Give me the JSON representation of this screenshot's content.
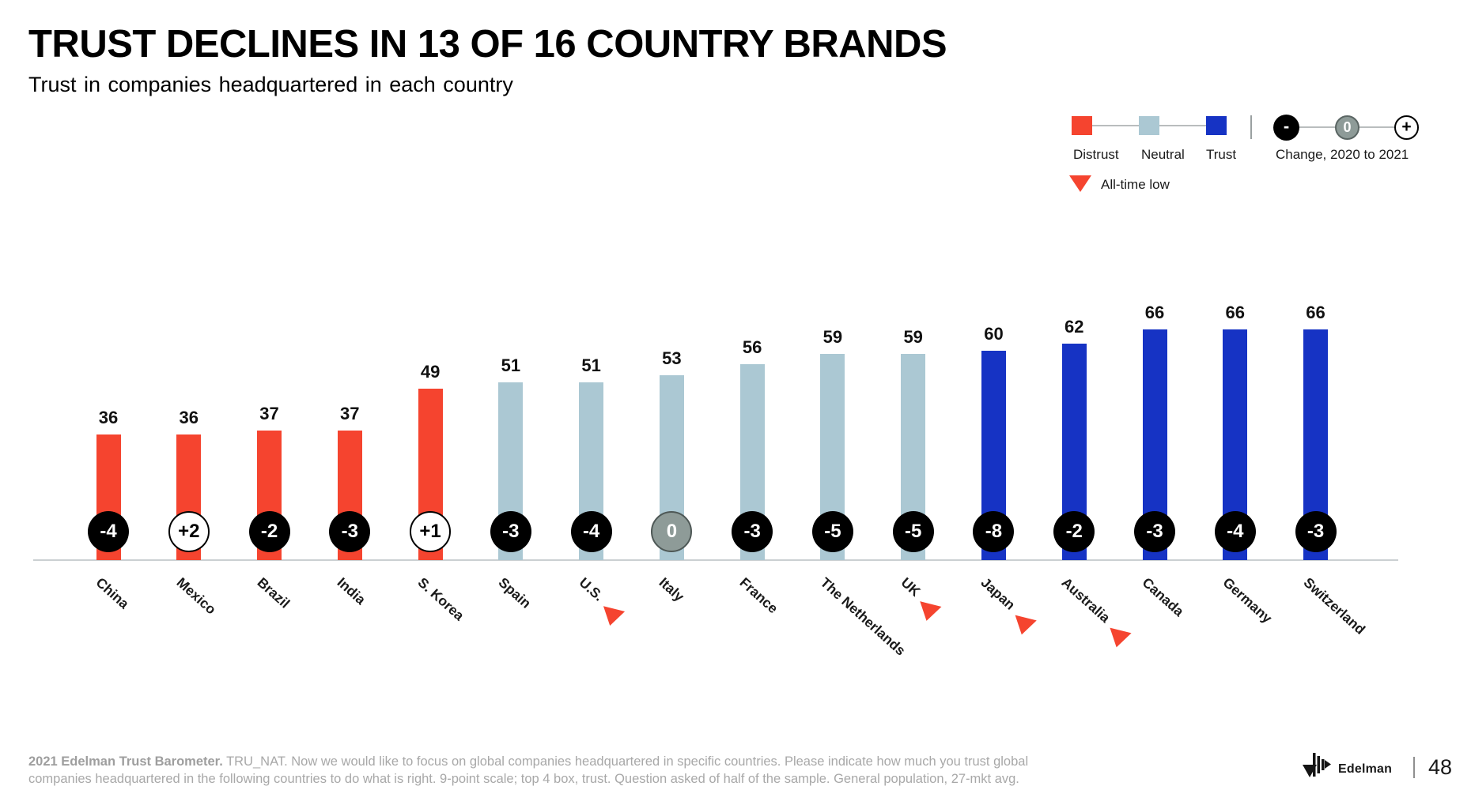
{
  "header": {
    "title": "TRUST DECLINES IN 13 OF 16 COUNTRY BRANDS",
    "subtitle": "Trust in companies headquartered in each country"
  },
  "legend": {
    "items": [
      {
        "label": "Distrust",
        "color": "#f5442f"
      },
      {
        "label": "Neutral",
        "color": "#abc8d3"
      },
      {
        "label": "Trust",
        "color": "#1633c4"
      }
    ],
    "change_label": "Change, 2020 to 2021",
    "change_symbols": [
      "-",
      "0",
      "+"
    ],
    "all_time_low_label": "All-time low"
  },
  "chart_data": {
    "type": "bar",
    "title": "Trust in companies headquartered in each country",
    "categories": [
      "China",
      "Mexico",
      "Brazil",
      "India",
      "S. Korea",
      "Spain",
      "U.S.",
      "Italy",
      "France",
      "The Netherlands",
      "UK",
      "Japan",
      "Australia",
      "Canada",
      "Germany",
      "Switzerland"
    ],
    "values": [
      36,
      36,
      37,
      37,
      49,
      51,
      51,
      53,
      56,
      59,
      59,
      60,
      62,
      66,
      66,
      66
    ],
    "segments": [
      "distrust",
      "distrust",
      "distrust",
      "distrust",
      "distrust",
      "neutral",
      "neutral",
      "neutral",
      "neutral",
      "neutral",
      "neutral",
      "trust",
      "trust",
      "trust",
      "trust",
      "trust"
    ],
    "changes": [
      "-4",
      "+2",
      "-2",
      "-3",
      "+1",
      "-3",
      "-4",
      "0",
      "-3",
      "-5",
      "-5",
      "-8",
      "-2",
      "-3",
      "-4",
      "-3"
    ],
    "all_time_low": [
      false,
      false,
      false,
      false,
      false,
      false,
      true,
      false,
      false,
      false,
      true,
      true,
      true,
      false,
      false,
      false
    ],
    "ylim": [
      0,
      100
    ],
    "grid": false,
    "legend_position": "top-right"
  },
  "colors": {
    "distrust": "#f5442f",
    "neutral": "#abc8d3",
    "trust": "#1633c4",
    "badge_negative": "#000000",
    "badge_positive_bg": "#ffffff",
    "badge_zero_bg": "#8e9b98",
    "axis": "#cbd0d2",
    "all_time_low_marker": "#f5442f"
  },
  "footer": {
    "source_bold": "2021 Edelman Trust Barometer.",
    "source_text": " TRU_NAT. Now we would like to focus on global companies headquartered in specific countries. Please indicate how much you trust global companies headquartered in the following countries to do what is right. 9-point scale; top 4 box, trust. Question asked of half of the sample. General population, 27-mkt avg.",
    "logo_text": "Edelman",
    "page_number": "48"
  }
}
